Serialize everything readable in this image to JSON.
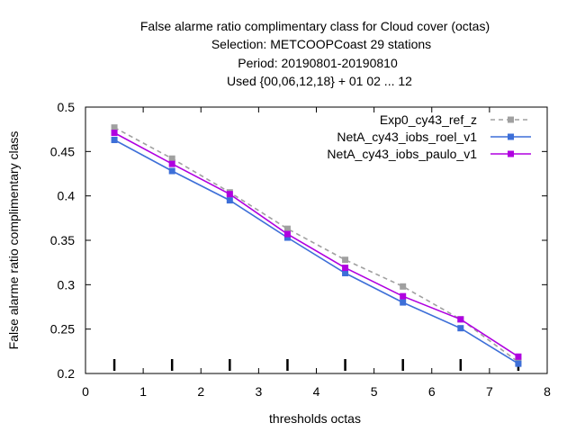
{
  "chart_data": {
    "type": "line",
    "title_lines": [
      "False alarme ratio complimentary class  for Cloud cover (octas)",
      "Selection: METCOOPCoast     29 stations",
      "Period: 20190801-20190810",
      "Used {00,06,12,18} + 01 02 ... 12"
    ],
    "xlabel": "thresholds octas",
    "ylabel": "False alarme ratio complimentary class",
    "xlim": [
      0,
      8
    ],
    "ylim": [
      0.2,
      0.5
    ],
    "xticks": [
      0,
      1,
      2,
      3,
      4,
      5,
      6,
      7,
      8
    ],
    "xtick_labels": [
      "0",
      "1",
      "2",
      "3",
      "4",
      "5",
      "6",
      "7",
      "8"
    ],
    "yticks": [
      0.2,
      0.25,
      0.3,
      0.35,
      0.4,
      0.45,
      0.5
    ],
    "ytick_labels": [
      "0.2",
      "0.25",
      "0.3",
      "0.35",
      "0.4",
      "0.45",
      "0.5"
    ],
    "grid": false,
    "legend_position": "top-right",
    "x": [
      0.5,
      1.5,
      2.5,
      3.5,
      4.5,
      5.5,
      6.5,
      7.5
    ],
    "series": [
      {
        "name": "Exp0_cy43_ref_z",
        "color": "#a0a0a0",
        "dashed": true,
        "values": [
          0.477,
          0.442,
          0.404,
          0.363,
          0.328,
          0.298,
          0.261,
          0.213
        ]
      },
      {
        "name": "NetA_cy43_iobs_roel_v1",
        "color": "#3d6fd8",
        "dashed": false,
        "values": [
          0.463,
          0.428,
          0.395,
          0.353,
          0.313,
          0.28,
          0.251,
          0.211
        ]
      },
      {
        "name": "NetA_cy43_iobs_paulo_v1",
        "color": "#b000e0",
        "dashed": false,
        "values": [
          0.471,
          0.436,
          0.402,
          0.357,
          0.319,
          0.287,
          0.261,
          0.219
        ]
      }
    ],
    "sample_marks": {
      "color": "#000000",
      "x": [
        0.5,
        1.5,
        2.5,
        3.5,
        4.5,
        5.5,
        6.5,
        7.5
      ]
    }
  }
}
